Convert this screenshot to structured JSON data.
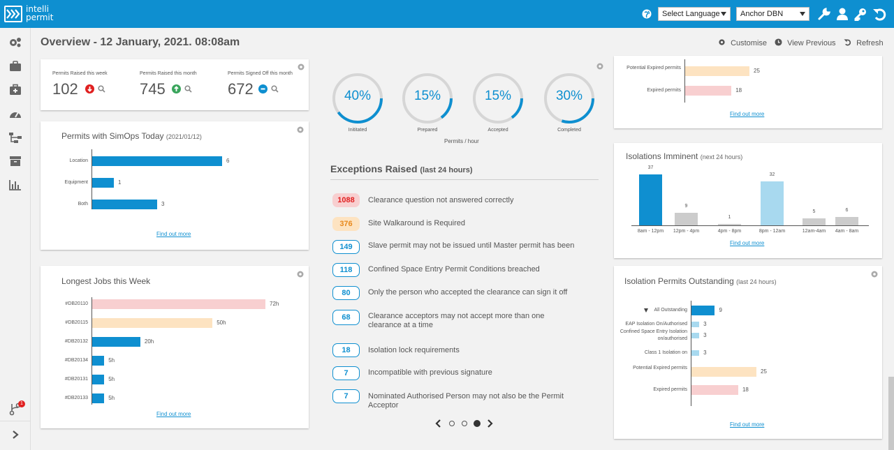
{
  "brand": {
    "line1": "intelli",
    "line2": "permit"
  },
  "topbar": {
    "language": "Select Language",
    "site": "Anchor DBN",
    "icons": [
      "globe-icon",
      "wrench-icon",
      "user-icon",
      "key-icon",
      "undo-icon"
    ]
  },
  "sidebar": {
    "icons": [
      "cogs-icon",
      "briefcase-icon",
      "first-aid-icon",
      "dashboard-icon",
      "sitemap-icon",
      "archive-icon",
      "bar-chart-icon",
      "code-branch-icon",
      "chevron-right-icon"
    ],
    "notif_badge": "1"
  },
  "page": {
    "title": "Overview - 12 January, 2021. 08:08am",
    "customise": "Customise",
    "view_previous": "View Previous",
    "refresh": "Refresh"
  },
  "stats": [
    {
      "label": "Permits Raised this week",
      "value": "102",
      "trend": "down"
    },
    {
      "label": "Permits Raised this month",
      "value": "745",
      "trend": "up"
    },
    {
      "label": "Permits Signed Off this month",
      "value": "672",
      "trend": "flat"
    }
  ],
  "simops": {
    "title": "Permits with SimOps Today",
    "subtitle": "(2021/01/12)",
    "link": "Find out more",
    "chart_data": {
      "type": "bar",
      "orientation": "horizontal",
      "categories": [
        "Location",
        "Equipment",
        "Both"
      ],
      "values": [
        6,
        1,
        3
      ],
      "color": "#0f8fd0"
    }
  },
  "longest": {
    "title": "Longest Jobs this Week",
    "link": "Find out more",
    "chart_data": {
      "type": "bar",
      "orientation": "horizontal",
      "categories": [
        "#DB20110",
        "#DB20115",
        "#DB20132",
        "#DB20134",
        "#DB20131",
        "#DB20133"
      ],
      "values": [
        72,
        50,
        20,
        5,
        5,
        5
      ],
      "labels": [
        "72h",
        "50h",
        "20h",
        "5h",
        "5h",
        "5h"
      ],
      "colors": [
        "#f8cfd0",
        "#fde3c1",
        "#0f8fd0",
        "#0f8fd0",
        "#0f8fd0",
        "#0f8fd0"
      ]
    }
  },
  "gauges": {
    "caption": "Permits / hour",
    "items": [
      {
        "percent": 40,
        "text": "40%",
        "label": "Inititated"
      },
      {
        "percent": 15,
        "text": "15%",
        "label": "Prepared"
      },
      {
        "percent": 15,
        "text": "15%",
        "label": "Accepted"
      },
      {
        "percent": 30,
        "text": "30%",
        "label": "Completed"
      }
    ]
  },
  "exceptions": {
    "title": "Exceptions Raised",
    "subtitle": "(last 24 hours)",
    "items": [
      {
        "count": "1088",
        "text": "Clearance question not answered correctly",
        "style": "red"
      },
      {
        "count": "376",
        "text": "Site Walkaround is Required",
        "style": "orange"
      },
      {
        "count": "149",
        "text": "Slave permit may not be issued until Master permit has been",
        "style": "blue"
      },
      {
        "count": "118",
        "text": "Confined Space Entry Permit Conditions breached",
        "style": "blue"
      },
      {
        "count": "80",
        "text": "Only the person who accepted the clearance can sign it off",
        "style": "blue"
      },
      {
        "count": "68",
        "text": "Clearance acceptors may not accept more than one clearance at a time",
        "style": "blue"
      },
      {
        "count": "18",
        "text": "Isolation lock requirements",
        "style": "blue"
      },
      {
        "count": "7",
        "text": "Incompatible with previous signature",
        "style": "blue"
      },
      {
        "count": "7",
        "text": "Nominated Authorised Person may not also be the Permit Acceptor",
        "style": "blue"
      }
    ],
    "pager": {
      "pages": 4,
      "active": 3
    }
  },
  "expired_top": {
    "link": "Find out more",
    "chart_data": {
      "type": "bar",
      "orientation": "horizontal",
      "categories": [
        "Potential Expired permits",
        "Expired permits"
      ],
      "values": [
        25,
        18
      ],
      "colors": [
        "#fde3c1",
        "#f8cfd0"
      ]
    }
  },
  "imminent": {
    "title": "Isolations Imminent",
    "subtitle": "(next 24 hours)",
    "link": "Find out more",
    "chart_data": {
      "type": "bar",
      "categories": [
        "8am - 12pm",
        "12pm - 4pm",
        "4pm - 8pm",
        "8pm - 12am",
        "12am-4am",
        "4am - 8am"
      ],
      "values": [
        37,
        9,
        1,
        32,
        5,
        6
      ],
      "colors": [
        "#0f8fd0",
        "#cccccc",
        "#cccccc",
        "#a8d9ef",
        "#cccccc",
        "#cccccc"
      ],
      "ylim": [
        0,
        37
      ]
    }
  },
  "outstanding": {
    "title": "Isolation Permits Outstanding",
    "subtitle": "(last 24 hours)",
    "link": "Find out more",
    "chart_data": {
      "type": "bar",
      "orientation": "horizontal",
      "categories": [
        "All Outstanding",
        "EAP Isolation On/Authorised",
        "Confined Space Entry Isolation on/authorised",
        "Class 1 Isolation on",
        "Potential Expired permits",
        "Expired permits"
      ],
      "values": [
        9,
        3,
        3,
        3,
        25,
        18
      ],
      "colors": [
        "#0f8fd0",
        "#a8d9ef",
        "#a8d9ef",
        "#a8d9ef",
        "#fde3c1",
        "#f8cfd0"
      ]
    }
  }
}
